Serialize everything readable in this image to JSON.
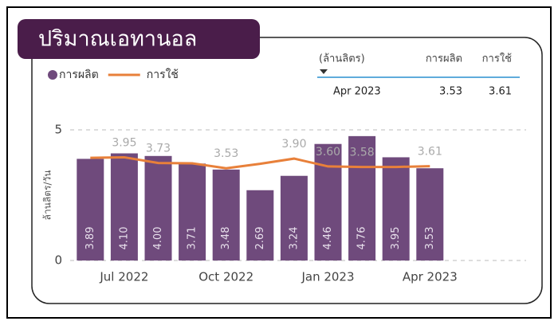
{
  "title": "ปริมาณเอทานอล",
  "table": {
    "header": [
      "(ล้านลิตร)",
      "การผลิต",
      "การใช้"
    ],
    "rows": [
      [
        "Apr 2023",
        "3.53",
        "3.61"
      ]
    ]
  },
  "chart_data": {
    "type": "bar-line",
    "y_label": "ล้านลิตร/วัน",
    "categories": [
      null,
      "Jul 2022",
      null,
      null,
      "Oct 2022",
      null,
      null,
      "Jan 2023",
      null,
      null,
      "Apr 2023"
    ],
    "series": [
      {
        "name": "การผลิต",
        "type": "bar",
        "color": "#6f4a7c",
        "values": [
          3.89,
          4.1,
          4.0,
          3.71,
          3.48,
          2.69,
          3.24,
          4.46,
          4.76,
          3.95,
          3.53
        ],
        "value_labels": [
          "3.89",
          "4.10",
          "4.00",
          "3.71",
          "3.48",
          "2.69",
          "3.24",
          "4.46",
          "4.76",
          "3.95",
          "3.53"
        ]
      },
      {
        "name": "การใช้",
        "type": "line",
        "color": "#e8803a",
        "values": [
          3.93,
          3.95,
          3.73,
          3.72,
          3.53,
          3.7,
          3.9,
          3.6,
          3.58,
          3.58,
          3.61
        ],
        "value_labels": [
          null,
          "3.95",
          "3.73",
          null,
          "3.53",
          null,
          "3.90",
          "3.60",
          "3.58",
          null,
          "3.61"
        ]
      }
    ],
    "ylim": [
      0,
      5
    ],
    "yticks": [
      0,
      5
    ],
    "grid": true,
    "legend": "top-left"
  }
}
